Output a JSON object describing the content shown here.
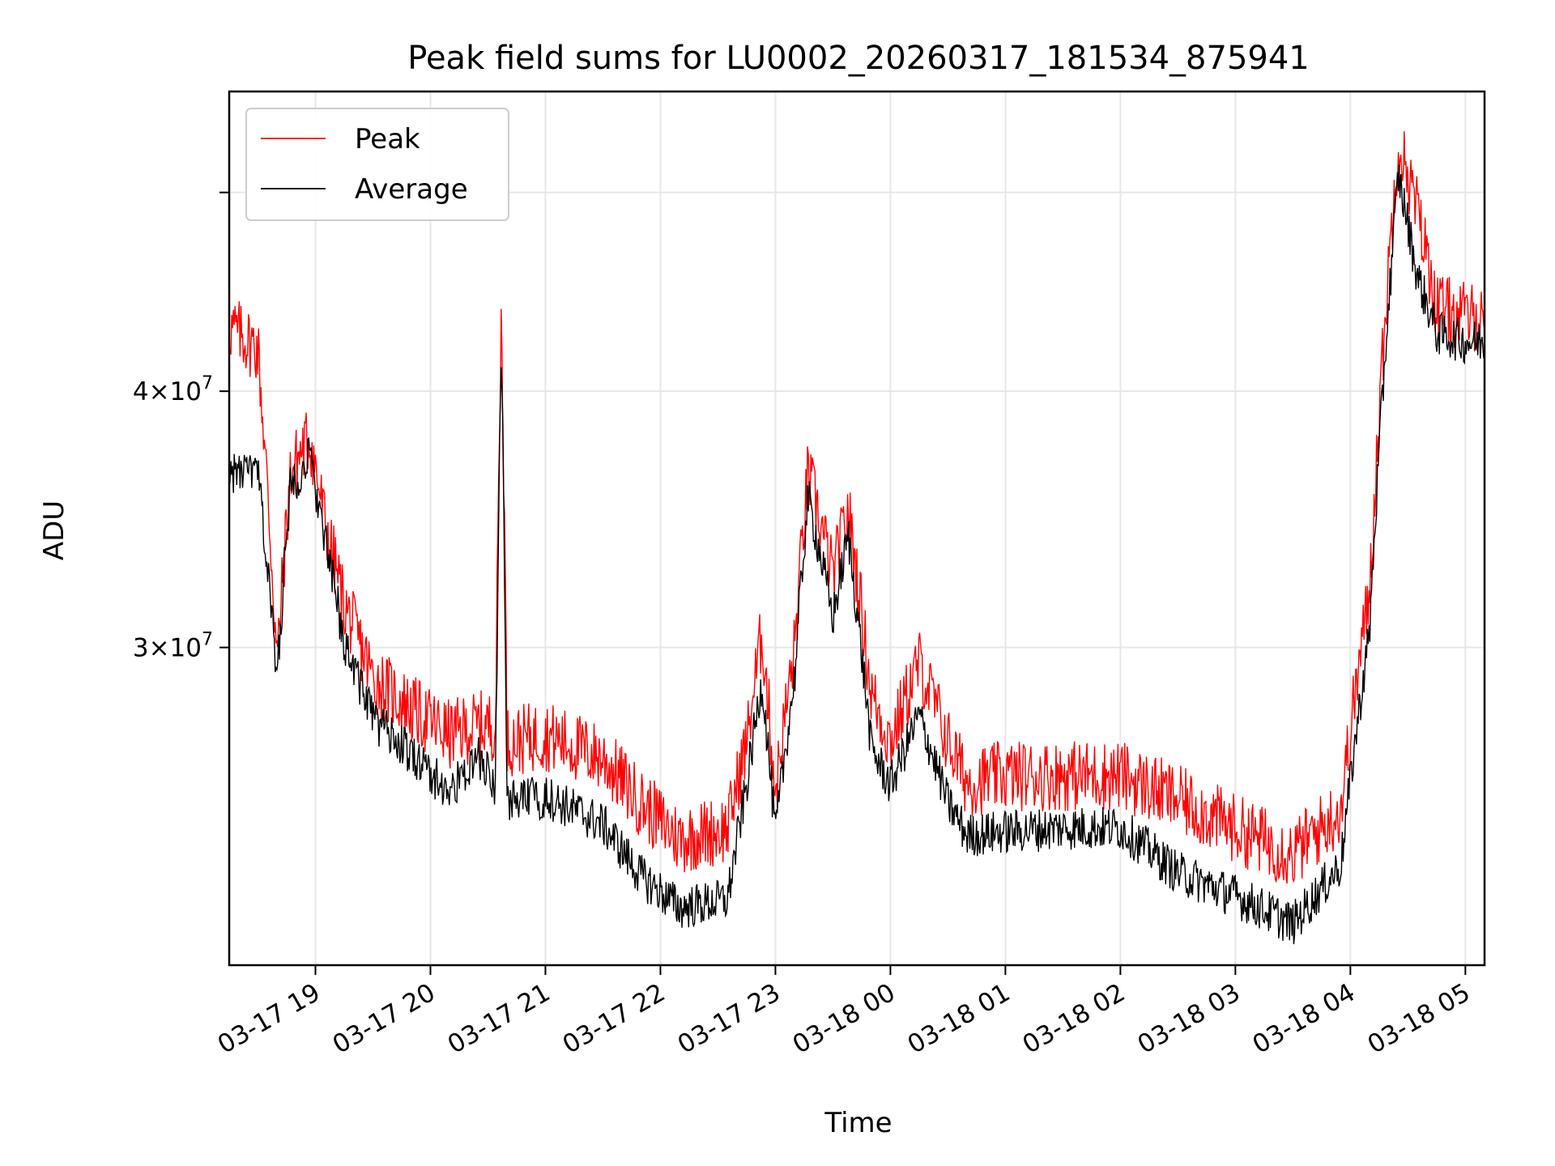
{
  "chart_data": {
    "type": "line",
    "title": "Peak field sums for LU0002_20260317_181534_875941",
    "xlabel": "Time",
    "ylabel": "ADU",
    "y_scale": "log",
    "grid": true,
    "legend_position": "top-left",
    "xlim": [
      "03-17 18:15",
      "03-18 05:10"
    ],
    "ylim": [
      21000000,
      56000000
    ],
    "x_ticks": [
      {
        "value": "03-17 19:00",
        "label": "03-17 19"
      },
      {
        "value": "03-17 20:00",
        "label": "03-17 20"
      },
      {
        "value": "03-17 21:00",
        "label": "03-17 21"
      },
      {
        "value": "03-17 22:00",
        "label": "03-17 22"
      },
      {
        "value": "03-17 23:00",
        "label": "03-17 23"
      },
      {
        "value": "03-18 00:00",
        "label": "03-18 00"
      },
      {
        "value": "03-18 01:00",
        "label": "03-18 01"
      },
      {
        "value": "03-18 02:00",
        "label": "03-18 02"
      },
      {
        "value": "03-18 03:00",
        "label": "03-18 03"
      },
      {
        "value": "03-18 04:00",
        "label": "03-18 04"
      },
      {
        "value": "03-18 05:00",
        "label": "03-18 05"
      }
    ],
    "y_ticks": [
      {
        "value": 30000000,
        "label": "3×10",
        "exp": "7"
      },
      {
        "value": 40000000,
        "label": "4×10",
        "exp": "7"
      },
      {
        "value": 50000000,
        "label": "",
        "exp": ""
      }
    ],
    "series": [
      {
        "name": "Peak",
        "color": "#ff0000",
        "noise": 0.04,
        "x": [
          "03-17 18:15",
          "03-17 18:30",
          "03-17 18:40",
          "03-17 18:44",
          "03-17 18:47",
          "03-17 18:50",
          "03-17 18:57",
          "03-17 19:05",
          "03-17 19:15",
          "03-17 19:30",
          "03-17 19:50",
          "03-17 20:10",
          "03-17 20:25",
          "03-17 20:34",
          "03-17 20:37",
          "03-17 20:40",
          "03-17 21:00",
          "03-17 21:30",
          "03-17 21:50",
          "03-17 22:10",
          "03-17 22:35",
          "03-17 22:45",
          "03-17 22:53",
          "03-17 23:00",
          "03-17 23:10",
          "03-17 23:17",
          "03-17 23:30",
          "03-17 23:38",
          "03-17 23:50",
          "03-18 00:00",
          "03-18 00:15",
          "03-18 00:30",
          "03-18 00:40",
          "03-18 01:00",
          "03-18 01:30",
          "03-18 02:00",
          "03-18 02:30",
          "03-18 03:00",
          "03-18 03:30",
          "03-18 03:55",
          "03-18 04:10",
          "03-18 04:25",
          "03-18 04:35",
          "03-18 04:45",
          "03-18 05:00",
          "03-18 05:10"
        ],
        "y": [
          43000000,
          42000000,
          29500000,
          33500000,
          36500000,
          37000000,
          38000000,
          34500000,
          31500000,
          29000000,
          28000000,
          27200000,
          27500000,
          27500000,
          43500000,
          27000000,
          27200000,
          26500000,
          25200000,
          24200000,
          24500000,
          27000000,
          30500000,
          25500000,
          30000000,
          36500000,
          32500000,
          35000000,
          28500000,
          27000000,
          29500000,
          27000000,
          25800000,
          26000000,
          26000000,
          26000000,
          25300000,
          24500000,
          23800000,
          25000000,
          32000000,
          53000000,
          49000000,
          44000000,
          43500000,
          43500000
        ]
      },
      {
        "name": "Average",
        "color": "#000000",
        "noise": 0.025,
        "x": [
          "03-17 18:15",
          "03-17 18:30",
          "03-17 18:40",
          "03-17 18:44",
          "03-17 18:47",
          "03-17 18:50",
          "03-17 18:57",
          "03-17 19:05",
          "03-17 19:15",
          "03-17 19:30",
          "03-17 19:50",
          "03-17 20:10",
          "03-17 20:25",
          "03-17 20:34",
          "03-17 20:37",
          "03-17 20:40",
          "03-17 21:00",
          "03-17 21:30",
          "03-17 21:50",
          "03-17 22:10",
          "03-17 22:35",
          "03-17 22:45",
          "03-17 22:53",
          "03-17 23:00",
          "03-17 23:10",
          "03-17 23:17",
          "03-17 23:30",
          "03-17 23:38",
          "03-17 23:50",
          "03-18 00:00",
          "03-18 00:15",
          "03-18 00:30",
          "03-18 00:40",
          "03-18 01:00",
          "03-18 01:30",
          "03-18 02:00",
          "03-18 02:30",
          "03-18 03:00",
          "03-18 03:30",
          "03-18 03:55",
          "03-18 04:10",
          "03-18 04:25",
          "03-18 04:35",
          "03-18 04:45",
          "03-18 05:00",
          "03-18 05:10"
        ],
        "y": [
          36500000,
          36500000,
          29000000,
          33000000,
          36000000,
          36300000,
          37200000,
          33800000,
          30200000,
          27700000,
          26600000,
          25500000,
          26500000,
          25700000,
          42500000,
          25200000,
          25400000,
          24600000,
          23200000,
          22400000,
          22600000,
          25700000,
          28900000,
          24300000,
          29000000,
          35500000,
          31000000,
          34000000,
          26800000,
          25700000,
          27800000,
          25200000,
          24300000,
          24400000,
          24500000,
          24500000,
          23300000,
          22700000,
          22000000,
          23500000,
          30500000,
          51000000,
          45500000,
          42700000,
          42300000,
          42300000
        ]
      }
    ]
  }
}
